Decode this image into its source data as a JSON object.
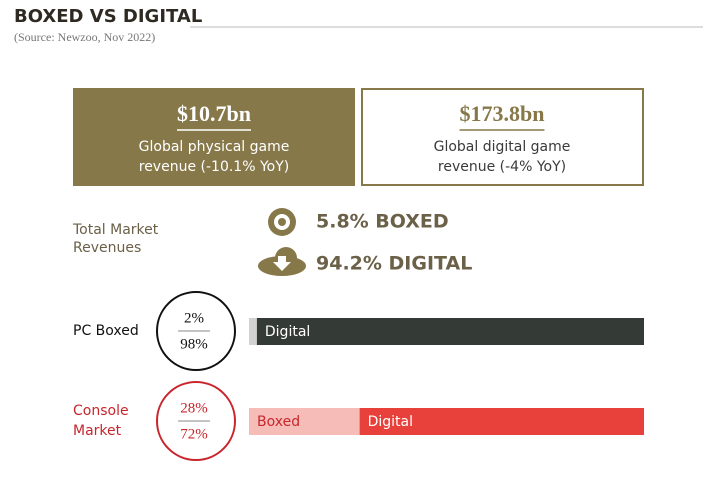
{
  "header": {
    "title": "BOXED VS DIGITAL",
    "source": "(Source: Newzoo, Nov 2022)"
  },
  "cards": [
    {
      "value": "$10.7bn",
      "lines": [
        "Global physical game",
        "revenue (-10.1% YoY)"
      ]
    },
    {
      "value": "$173.8bn",
      "lines": [
        "Global digital game",
        "revenue (-4% YoY)"
      ]
    }
  ],
  "total": {
    "label": [
      "Total Market",
      "Revenues"
    ],
    "boxed": "5.8% BOXED",
    "digital": "94.2% DIGITAL"
  },
  "rows": [
    {
      "label": [
        "PC Boxed"
      ],
      "color": "#111111",
      "boxed": 2,
      "boxed_label": "2%",
      "digital": 98,
      "digital_label": "98%",
      "boxed_color": "#d2d2d2",
      "digital_color": "#343a36",
      "bar_texts": [
        null,
        "Digital"
      ]
    },
    {
      "label": [
        "Console",
        "Market"
      ],
      "color": "#c8262c",
      "boxed": 28,
      "boxed_label": "28%",
      "digital": 72,
      "digital_label": "72%",
      "boxed_color": "#f6bdb8",
      "digital_color": "#e8413c",
      "bar_texts": [
        "Boxed",
        "Digital"
      ]
    }
  ]
}
